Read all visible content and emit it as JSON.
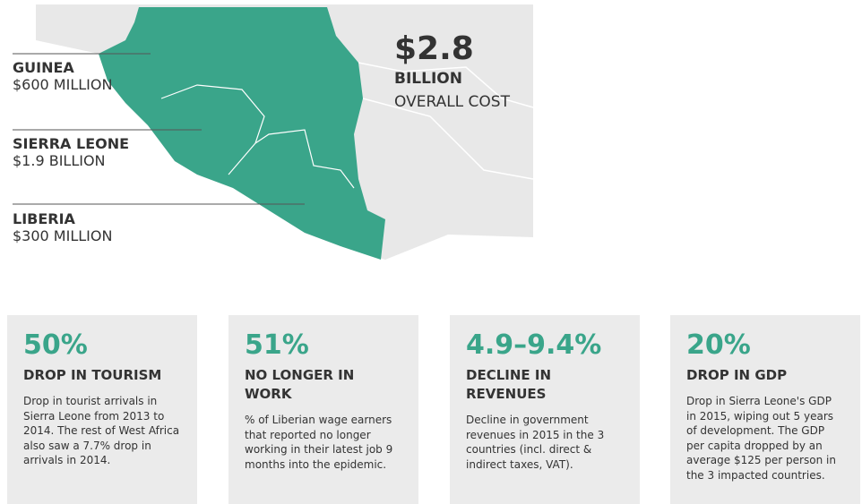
{
  "map": {
    "total": {
      "amount": "$2.8",
      "unit": "BILLION",
      "label": "OVERALL COST"
    },
    "countries": [
      {
        "name": "GUINEA",
        "cost": "$600 MILLION"
      },
      {
        "name": "SIERRA LEONE",
        "cost": "$1.9 BILLION"
      },
      {
        "name": "LIBERIA",
        "cost": "$300 MILLION"
      }
    ]
  },
  "cards": [
    {
      "figure": "50%",
      "heading": "DROP IN TOURISM",
      "body": "Drop in tourist arrivals in Sierra Leone from 2013 to 2014. The rest of West Africa also saw a 7.7% drop in arrivals in 2014."
    },
    {
      "figure": "51%",
      "heading": "NO LONGER IN WORK",
      "body": "% of Liberian wage earners that reported no longer working in their latest job 9 months into the epidemic."
    },
    {
      "figure": "4.9–9.4%",
      "heading": "DECLINE IN REVENUES",
      "body": "Decline in government revenues in 2015 in the 3 countries (incl. direct & indirect taxes, VAT)."
    },
    {
      "figure": "20%",
      "heading": "DROP IN GDP",
      "body": "Drop in Sierra Leone's GDP in 2015, wiping out 5 years of development. The GDP per capita dropped by an average $125 per person in the 3 impacted countries."
    }
  ]
}
